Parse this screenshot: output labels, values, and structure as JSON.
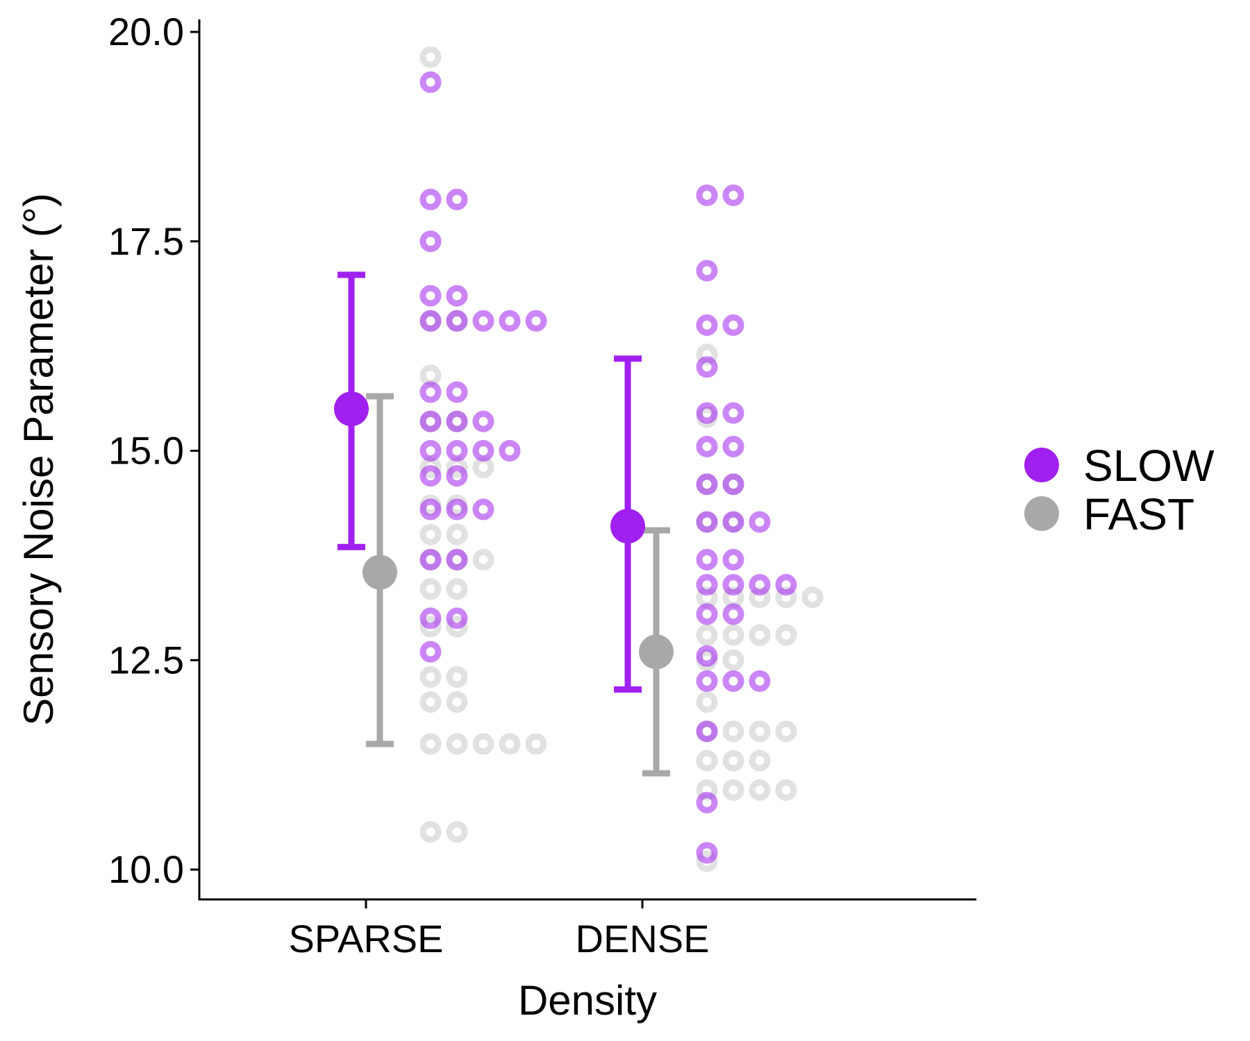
{
  "chart_data": {
    "type": "scatter",
    "title": "",
    "xlabel": "Density",
    "ylabel": "Sensory Noise Parameter (°)",
    "categories": [
      "SPARSE",
      "DENSE"
    ],
    "ylim": [
      9.65,
      20.3
    ],
    "yticks": [
      "10.0",
      "12.5",
      "15.0",
      "17.5",
      "20.0"
    ],
    "grid": false,
    "legend_position": "right",
    "series": [
      {
        "name": "SLOW",
        "color": "#a020f0",
        "summary": [
          {
            "category": "SPARSE",
            "mean": 15.5,
            "lower": 13.85,
            "upper": 17.1
          },
          {
            "category": "DENSE",
            "mean": 14.1,
            "lower": 12.15,
            "upper": 16.1
          }
        ],
        "points": [
          {
            "category": "SPARSE",
            "values": [
              19.4,
              18.0,
              18.0,
              17.5,
              16.85,
              16.85,
              16.55,
              16.55,
              16.55,
              16.55,
              16.55,
              15.7,
              15.7,
              15.35,
              15.35,
              15.35,
              15.0,
              15.0,
              15.0,
              15.0,
              14.7,
              14.7,
              14.3,
              14.3,
              14.3,
              13.7,
              13.7,
              13.0,
              13.0,
              12.6
            ]
          },
          {
            "category": "DENSE",
            "values": [
              18.05,
              18.05,
              17.15,
              16.5,
              16.5,
              16.0,
              15.45,
              15.45,
              15.05,
              15.05,
              14.6,
              14.6,
              14.15,
              14.15,
              14.15,
              13.7,
              13.7,
              13.4,
              13.4,
              13.4,
              13.4,
              13.05,
              13.05,
              12.55,
              12.25,
              12.25,
              12.25,
              11.65,
              10.8,
              10.2
            ]
          }
        ]
      },
      {
        "name": "FAST",
        "color": "#a8a8a8",
        "summary": [
          {
            "category": "SPARSE",
            "mean": 13.55,
            "lower": 11.5,
            "upper": 15.65
          },
          {
            "category": "DENSE",
            "mean": 12.6,
            "lower": 11.15,
            "upper": 14.05
          }
        ],
        "points": [
          {
            "category": "SPARSE",
            "values": [
              19.7,
              16.55,
              16.55,
              15.9,
              15.35,
              15.35,
              14.8,
              14.8,
              14.8,
              14.35,
              14.35,
              14.0,
              14.0,
              13.7,
              13.7,
              13.7,
              13.35,
              13.35,
              12.9,
              12.9,
              12.3,
              12.3,
              12.0,
              12.0,
              11.5,
              11.5,
              11.5,
              11.5,
              11.5,
              10.45,
              10.45
            ]
          },
          {
            "category": "DENSE",
            "values": [
              16.15,
              15.4,
              14.6,
              14.6,
              14.15,
              14.15,
              13.25,
              13.25,
              13.25,
              13.25,
              13.25,
              12.8,
              12.8,
              12.8,
              12.8,
              12.5,
              12.5,
              12.0,
              11.65,
              11.65,
              11.65,
              11.65,
              11.3,
              11.3,
              11.3,
              10.95,
              10.95,
              10.95,
              10.95,
              10.1
            ]
          }
        ]
      }
    ]
  }
}
